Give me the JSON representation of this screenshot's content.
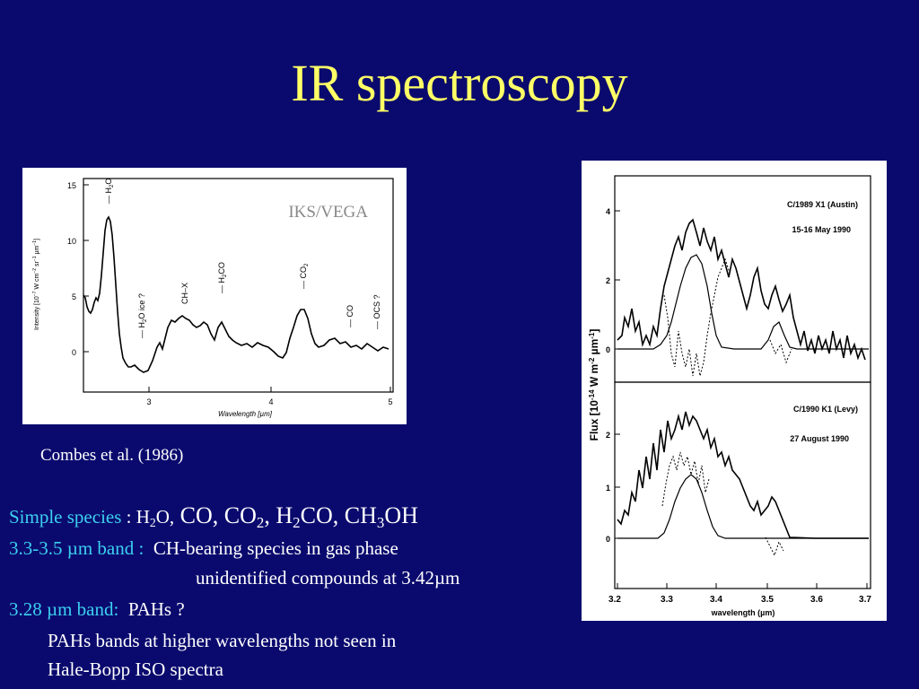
{
  "slide": {
    "title": "IR spectroscopy",
    "caption": "Combes et al. (1986)"
  },
  "figure1": {
    "watermark": "IKS/VEGA",
    "ylabel": "Intensity [10",
    "ylabel_exp": "−7",
    "ylabel_rest": " W cm",
    "ylabel_exp2": "−2",
    "ylabel_rest2": " sr",
    "ylabel_exp3": "−1",
    "ylabel_rest3": " µm",
    "ylabel_exp4": "−1",
    "ylabel_end": "]",
    "xlabel": "Wavelength [µm]",
    "yticks": [
      "0",
      "5",
      "10",
      "15"
    ],
    "xticks": [
      "3",
      "4",
      "5"
    ],
    "annotations": [
      "H",
      "2",
      "O",
      "H",
      "2",
      "O ice ?",
      "CH–X",
      "H",
      "2",
      "CO",
      "CO",
      "2",
      "CO",
      "OCS ?"
    ]
  },
  "figure2": {
    "ylabel": "Flux [10",
    "ylabel_exp": "-14",
    "ylabel_mid": " W m",
    "ylabel_exp2": "-2",
    "ylabel_mu": " µm",
    "ylabel_exp3": "-1",
    "ylabel_end": "]",
    "xlabel": "wavelength (µm)",
    "xticks": [
      "3.2",
      "3.3",
      "3.4",
      "3.5",
      "3.6",
      "3.7"
    ],
    "top_title": "C/1989 X1 (Austin)",
    "top_date": "15-16 May 1990",
    "top_yticks": [
      "0",
      "2",
      "4"
    ],
    "bottom_title": "C/1990 K1 (Levy)",
    "bottom_date": "27 August 1990",
    "bottom_yticks": [
      "0",
      "1",
      "2"
    ]
  },
  "body_text": {
    "line1_label": "Simple species",
    "line1_sep": " : ",
    "h2o_h": "H",
    "h2o_sub": "2",
    "h2o_o": "O,",
    "co": " CO, CO",
    "co2_sub": "2",
    "h2co_a": ", H",
    "h2co_sub": "2",
    "h2co_b": "CO, CH",
    "ch3oh_sub": "3",
    "ch3oh_b": "OH",
    "line2_label": "3.3-3.5 µm band :",
    "line2_text": "CH-bearing species in gas phase",
    "line3_text": "unidentified compounds at 3.42µm",
    "line4_label": "3.28 µm band:",
    "line4_text": "PAHs ?",
    "line5_text": "PAHs bands at higher wavelengths not seen in",
    "line6_text": "Hale-Bopp ISO spectra"
  }
}
